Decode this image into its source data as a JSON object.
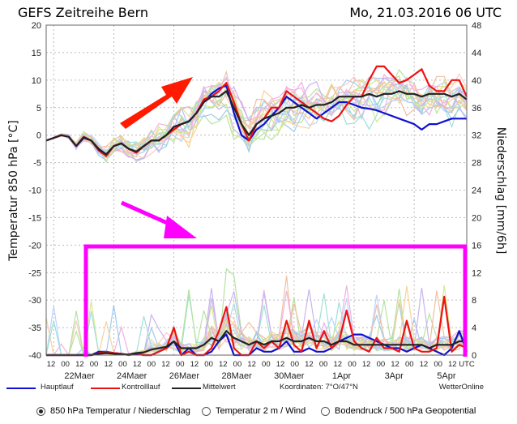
{
  "header": {
    "title": "GEFS Zeitreihe Bern",
    "date": "Mo, 21.03.2016 06 UTC"
  },
  "axes": {
    "left_title": "Temperatur 850 hPa [°C]",
    "right_title": "Niederschlag [mm/6h]",
    "left_ticks": [
      "20",
      "15",
      "10",
      "5",
      "0",
      "-5",
      "-10",
      "-15",
      "-20",
      "-25",
      "-30",
      "-35",
      "-40"
    ],
    "right_ticks": [
      "48",
      "44",
      "40",
      "36",
      "32",
      "28",
      "24",
      "20",
      "16",
      "12",
      "8",
      "4",
      "0"
    ],
    "hour_labels": [
      "12",
      "00",
      "12",
      "00",
      "12",
      "00",
      "12",
      "00",
      "12",
      "00",
      "12",
      "00",
      "12",
      "00",
      "12",
      "00",
      "12",
      "00",
      "12",
      "00",
      "12",
      "00",
      "12",
      "00",
      "12",
      "00",
      "12",
      "00",
      "12",
      "UTC"
    ],
    "date_labels": [
      "22Maer",
      "24Maer",
      "26Maer",
      "28Maer",
      "30Maer",
      "1Apr",
      "3Apr",
      "5Apr"
    ]
  },
  "legend": {
    "main": "Hauptlauf",
    "control": "Kontrolllauf",
    "mean": "Mittelwert",
    "coords": "Koordinaten: 7°O/47°N",
    "credit": "WetterOnline"
  },
  "options": {
    "opt1": "850 hPa Temperatur / Niederschlag",
    "opt2": "Temperatur 2 m / Wind",
    "opt3": "Bodendruck / 500 hPa Geopotential",
    "selected": 0
  },
  "colors": {
    "main": "#1010d0",
    "control": "#ee1111",
    "mean": "#222222",
    "annotation": "#ff00ff",
    "arrow": "#ff1a00"
  },
  "chart_data": {
    "type": "line",
    "title": "GEFS Zeitreihe Bern",
    "x_unit": "6h steps from 21.03.2016 06 UTC",
    "ylim_temperature": [
      -40,
      20
    ],
    "ylim_precipitation": [
      0,
      48
    ],
    "ylabel": "Temperatur 850 hPa [°C]",
    "y2label": "Niederschlag [mm/6h]",
    "temperature_series": [
      {
        "name": "Hauptlauf",
        "values": [
          -1,
          -0.5,
          0,
          -0.3,
          -2,
          -0.5,
          -1,
          -2.5,
          -3.5,
          -2,
          -1.5,
          -2.5,
          -3,
          -2,
          -1,
          -1,
          0,
          1.5,
          2,
          2.5,
          4,
          6,
          7.5,
          8.5,
          9,
          4,
          0,
          -1,
          1,
          2,
          3.5,
          5,
          7,
          6,
          5,
          4,
          3,
          4,
          5,
          6,
          6,
          5.5,
          5,
          4.8,
          4.5,
          4,
          3.5,
          3,
          2.5,
          2,
          1,
          2,
          2,
          2.5,
          3,
          3,
          3
        ]
      },
      {
        "name": "Kontrolllauf",
        "values": [
          -1,
          -0.5,
          0,
          -0.3,
          -2,
          -0.3,
          -1,
          -2.8,
          -3.8,
          -2,
          -1.5,
          -2.5,
          -3.2,
          -2,
          -1,
          -1,
          0,
          1,
          2,
          2.5,
          4,
          6.5,
          7,
          8,
          9.5,
          6,
          2,
          -1,
          2,
          3,
          5,
          5,
          8,
          7,
          6,
          5,
          4,
          3,
          2.5,
          3.5,
          5.5,
          7,
          7,
          10,
          12.5,
          12.5,
          11,
          9.5,
          10,
          11,
          12,
          9,
          8,
          8,
          10,
          10,
          7
        ]
      },
      {
        "name": "Mittelwert",
        "values": [
          -1,
          -0.5,
          0,
          -0.3,
          -2,
          -0.4,
          -1,
          -2.6,
          -3.5,
          -2,
          -1.5,
          -2.5,
          -3,
          -2,
          -1,
          -1,
          0,
          1.5,
          2,
          2.5,
          4,
          6,
          7,
          7,
          8,
          5,
          2,
          0,
          2,
          3,
          3.5,
          4,
          5,
          5,
          5.5,
          5,
          5.5,
          5.5,
          6,
          7,
          7,
          7,
          7,
          7.5,
          7,
          7.5,
          7.5,
          8,
          7.5,
          7.5,
          7,
          7.5,
          7.5,
          7.5,
          7,
          7.5,
          6.5
        ]
      }
    ],
    "precipitation_series": [
      {
        "name": "Hauptlauf",
        "values": [
          0,
          0,
          0,
          0,
          0,
          0,
          0,
          0.5,
          0.5,
          0.3,
          0.2,
          0,
          0.2,
          0,
          0,
          0.5,
          1,
          2,
          0,
          1,
          0,
          0,
          0.5,
          2,
          3,
          0,
          0,
          0,
          1,
          0.5,
          0.5,
          1,
          2,
          0.5,
          0.5,
          1,
          0.5,
          0.5,
          1,
          2,
          2.5,
          3,
          3,
          2.5,
          2,
          1.5,
          1,
          1,
          0.5,
          1,
          1.5,
          1,
          0.5,
          0,
          1,
          3.5,
          0.5
        ]
      },
      {
        "name": "Kontrolllauf",
        "values": [
          0,
          0,
          0,
          0,
          0,
          0,
          0,
          0.3,
          0.5,
          0.3,
          0.2,
          0,
          0.3,
          0,
          0,
          0.5,
          1,
          4,
          0,
          0.5,
          0,
          0,
          1,
          3.5,
          7,
          1,
          0,
          0,
          2,
          1,
          2,
          1,
          5,
          1.5,
          0.5,
          5,
          1,
          3.5,
          1,
          2,
          6.5,
          2,
          1,
          0.5,
          2.5,
          1,
          1,
          0.5,
          5,
          1,
          0.5,
          0.5,
          1,
          8.5,
          0.5,
          1.5,
          1
        ]
      },
      {
        "name": "Mittelwert",
        "values": [
          0,
          0,
          0,
          0,
          0,
          0,
          0,
          0.2,
          0.3,
          0.2,
          0.1,
          0.1,
          0.3,
          0.4,
          0.8,
          1,
          1.2,
          2,
          1,
          1,
          1,
          1.5,
          2.5,
          2,
          3.5,
          2.5,
          2,
          1.5,
          2,
          1.5,
          2,
          2,
          2.5,
          2,
          2,
          2.5,
          2,
          2,
          1.5,
          2,
          2,
          1.5,
          1.5,
          1.5,
          1.5,
          1.5,
          1.5,
          1.5,
          1.5,
          1.5,
          1.5,
          1,
          1.5,
          1.5,
          1.5,
          2,
          2
        ]
      }
    ]
  }
}
